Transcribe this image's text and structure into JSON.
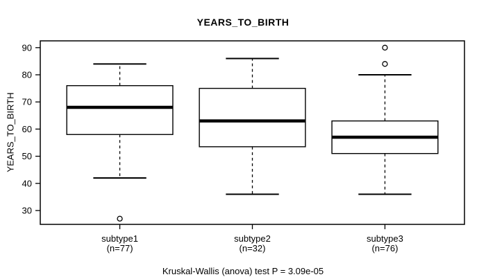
{
  "chart_data": {
    "type": "boxplot",
    "title": "YEARS_TO_BIRTH",
    "ylabel": "YEARS_TO_BIRTH",
    "footnote": "Kruskal-Wallis (anova) test P = 3.09e-05",
    "ylim": [
      24.9,
      92.5
    ],
    "yticks": [
      30,
      40,
      50,
      60,
      70,
      80,
      90
    ],
    "grid": false,
    "legend": "none",
    "colors": {
      "line": "#000000",
      "box_fill": "#ffffff",
      "background": "#ffffff"
    },
    "groups": [
      {
        "label": "subtype1",
        "n_label": "(n=77)",
        "whisker_low": 42,
        "q1": 58,
        "median": 68,
        "q3": 76,
        "whisker_high": 84,
        "outliers": [
          27
        ]
      },
      {
        "label": "subtype2",
        "n_label": "(n=32)",
        "whisker_low": 36,
        "q1": 53.5,
        "median": 63,
        "q3": 75,
        "whisker_high": 86,
        "outliers": []
      },
      {
        "label": "subtype3",
        "n_label": "(n=76)",
        "whisker_low": 36,
        "q1": 51,
        "median": 57,
        "q3": 63,
        "whisker_high": 80,
        "outliers": [
          84,
          90
        ]
      }
    ]
  }
}
